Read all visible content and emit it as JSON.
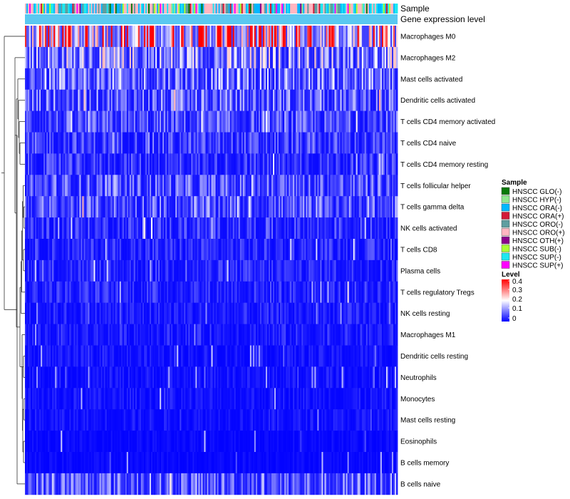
{
  "chart_data": {
    "type": "heatmap",
    "annotation_tracks": [
      "Sample",
      "Gene expression level"
    ],
    "rows": [
      {
        "label": "Macrophages M0",
        "level": 0.32
      },
      {
        "label": "Macrophages M2",
        "level": 0.14
      },
      {
        "label": "Mast cells activated",
        "level": 0.11
      },
      {
        "label": "Dendritic cells activated",
        "level": 0.09
      },
      {
        "label": "T cells CD4 memory activated",
        "level": 0.07
      },
      {
        "label": "T cells CD4 naive",
        "level": 0.06
      },
      {
        "label": "T cells CD4 memory resting",
        "level": 0.05
      },
      {
        "label": "T cells follicular helper",
        "level": 0.08
      },
      {
        "label": "T cells gamma delta",
        "level": 0.08
      },
      {
        "label": "NK cells activated",
        "level": 0.05
      },
      {
        "label": "T cells CD8",
        "level": 0.04
      },
      {
        "label": "Plasma cells",
        "level": 0.04
      },
      {
        "label": "T cells regulatory  Tregs",
        "level": 0.04
      },
      {
        "label": "NK cells resting",
        "level": 0.03
      },
      {
        "label": "Macrophages M1",
        "level": 0.03
      },
      {
        "label": "Dendritic cells resting",
        "level": 0.02
      },
      {
        "label": "Neutrophils",
        "level": 0.02
      },
      {
        "label": "Monocytes",
        "level": 0.02
      },
      {
        "label": "Mast cells resting",
        "level": 0.02
      },
      {
        "label": "Eosinophils",
        "level": 0.01
      },
      {
        "label": "B cells memory",
        "level": 0.01
      },
      {
        "label": "B cells naive",
        "level": 0.09
      }
    ],
    "n_samples": 260,
    "sample_legend": {
      "title": "Sample",
      "entries": [
        {
          "label": "HNSCC GLO(-)",
          "color": "#0a7a0a"
        },
        {
          "label": "HNSCC HYP(-)",
          "color": "#90e890"
        },
        {
          "label": "HNSCC ORA(-)",
          "color": "#00b8ff"
        },
        {
          "label": "HNSCC ORA(+)",
          "color": "#d21a38"
        },
        {
          "label": "HNSCC ORO(-)",
          "color": "#5f9ea0"
        },
        {
          "label": "HNSCC ORO(+)",
          "color": "#ffb6c1"
        },
        {
          "label": "HNSCC OTH(+)",
          "color": "#8b008b"
        },
        {
          "label": "HNSCC SUB(-)",
          "color": "#aaff32"
        },
        {
          "label": "HNSCC SUP(-)",
          "color": "#1ee8f0"
        },
        {
          "label": "HNSCC SUP(+)",
          "color": "#ff00ff"
        }
      ]
    },
    "level_legend": {
      "title": "Level",
      "ticks": [
        "0.4",
        "0.3",
        "0.2",
        "0.1",
        "0"
      ],
      "range": [
        0,
        0.4
      ],
      "colors": [
        "#0000ff",
        "#ffffff",
        "#ff0000"
      ]
    },
    "expression_track_color": "#5ac8f0"
  }
}
